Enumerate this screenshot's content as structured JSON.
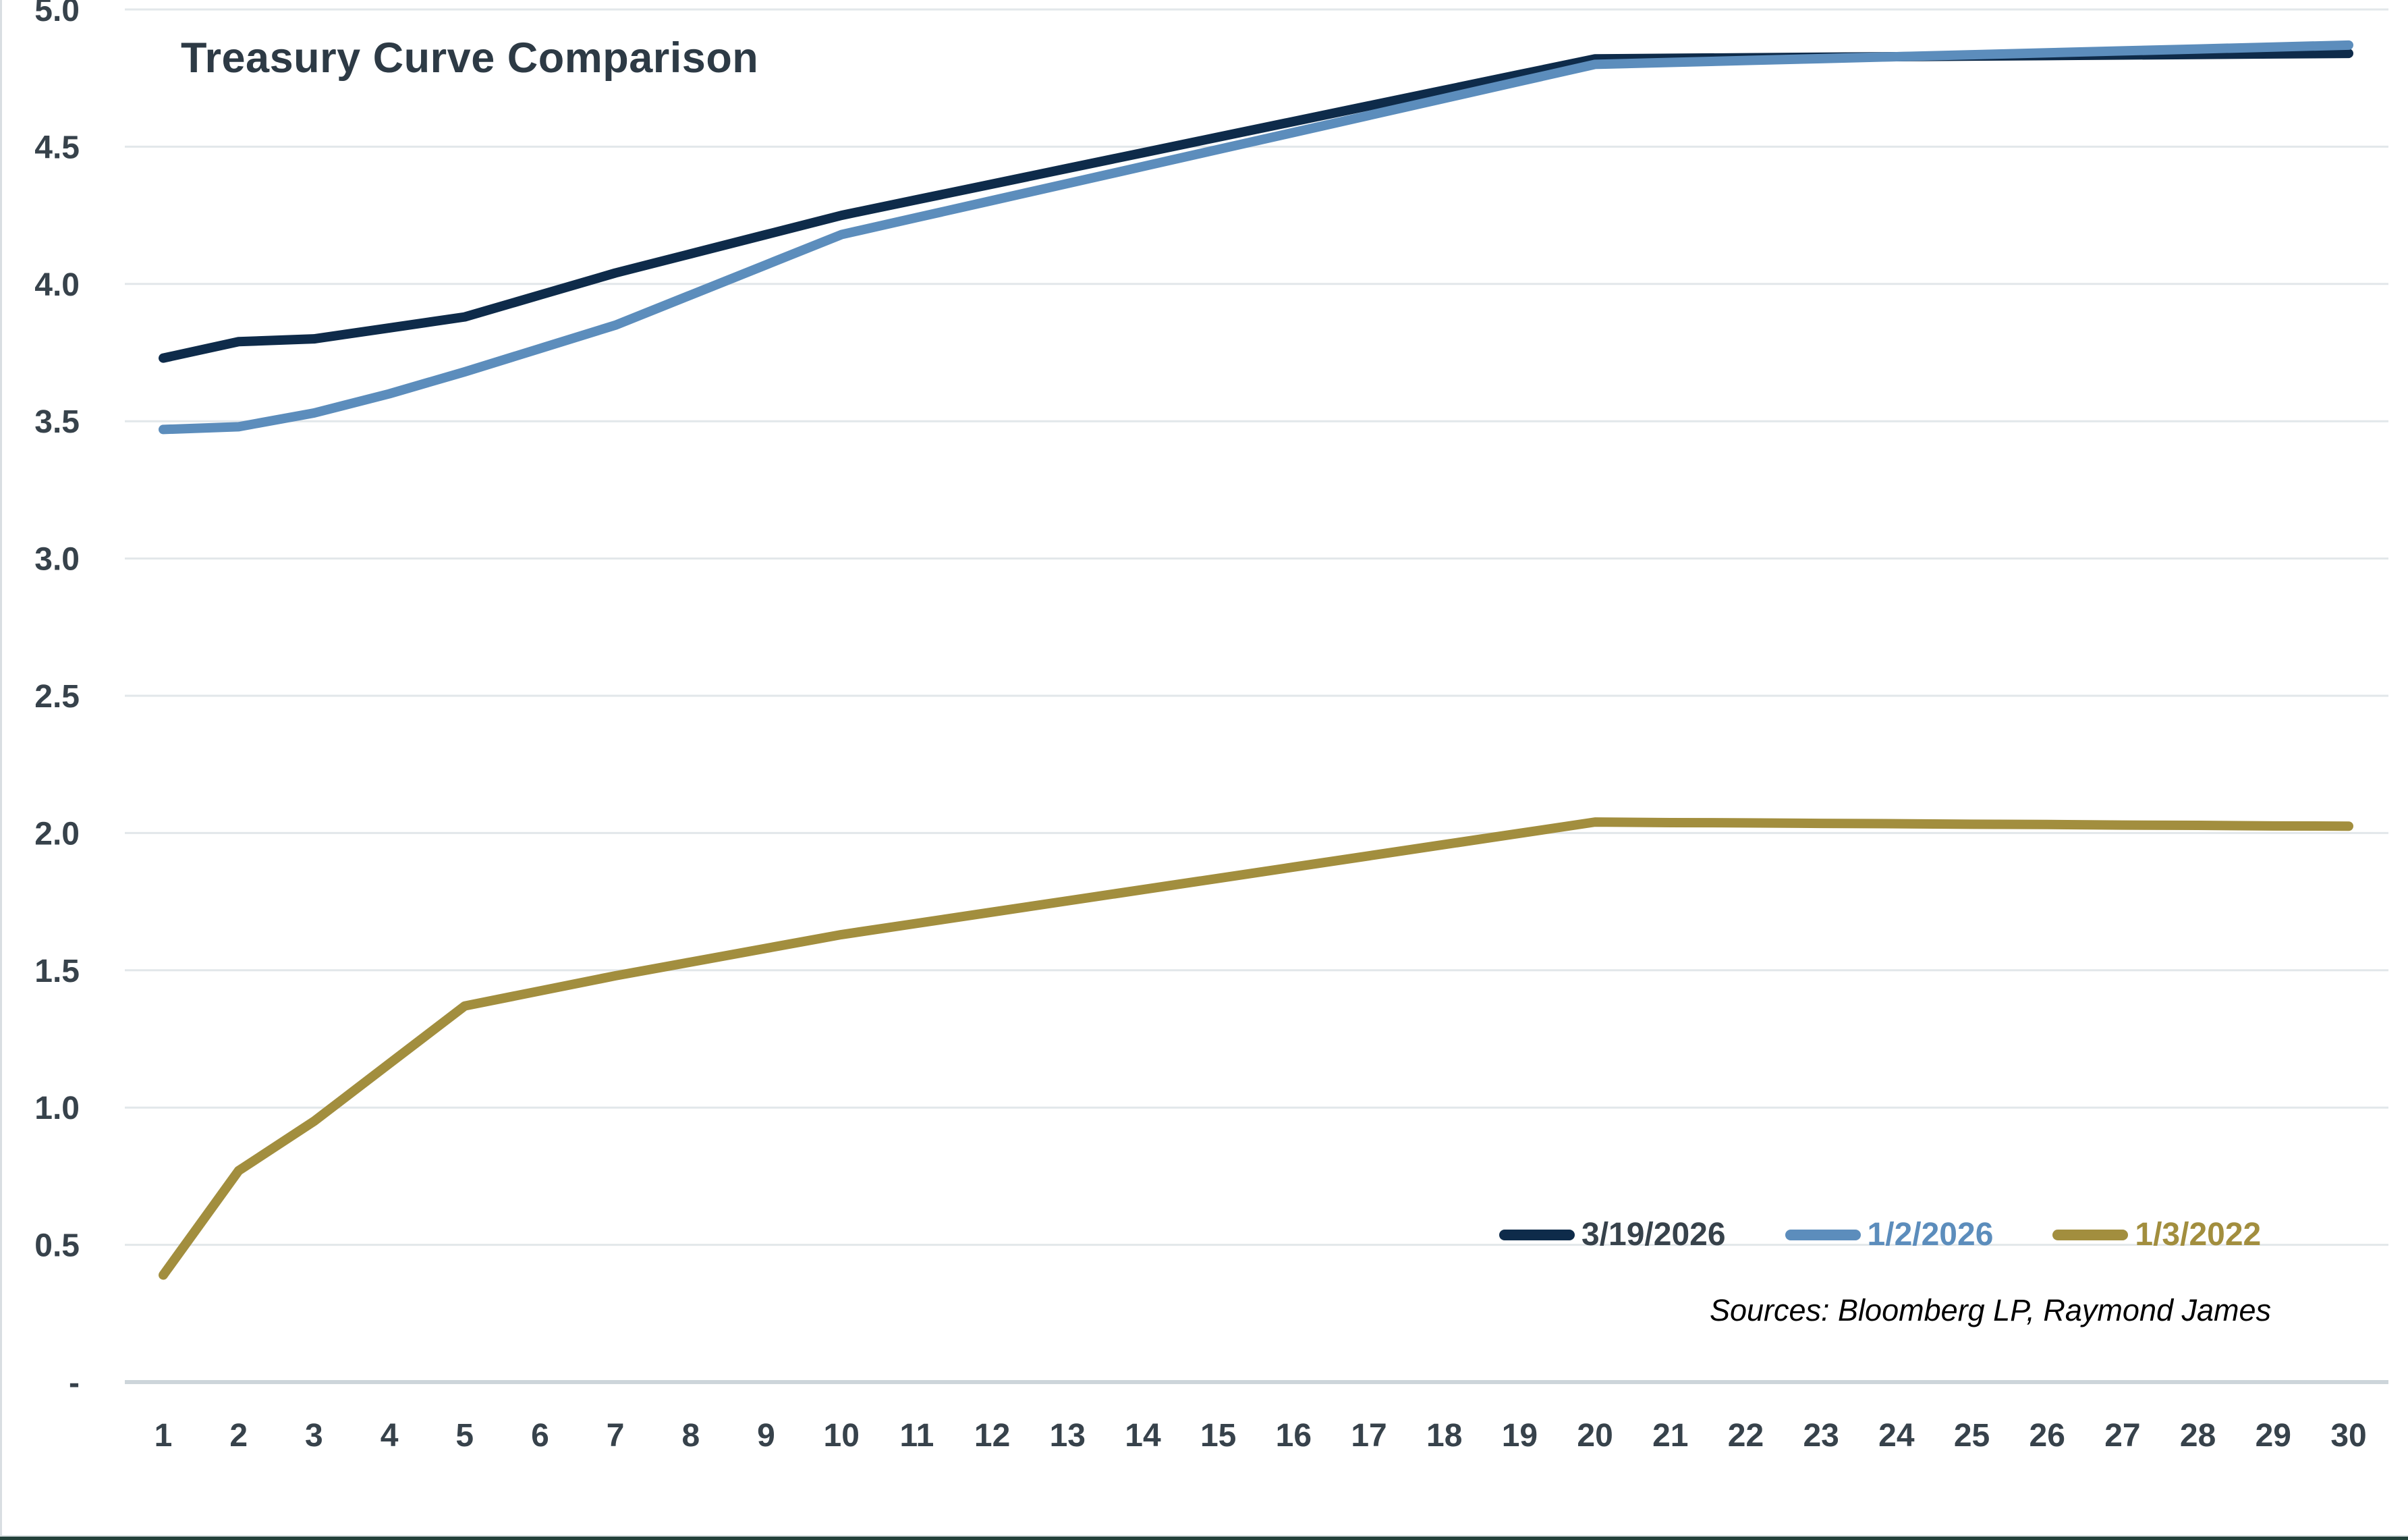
{
  "chart_data": {
    "type": "line",
    "title": "Treasury Curve Comparison",
    "xlabel": "",
    "ylabel": "",
    "x": [
      1,
      2,
      3,
      4,
      5,
      6,
      7,
      8,
      9,
      10,
      11,
      12,
      13,
      14,
      15,
      16,
      17,
      18,
      19,
      20,
      21,
      22,
      23,
      24,
      25,
      26,
      27,
      28,
      29,
      30
    ],
    "ylim": [
      0,
      5
    ],
    "ytick_step": 0.5,
    "ytick_labels": [
      "-",
      "0.5",
      "1.0",
      "1.5",
      "2.0",
      "2.5",
      "3.0",
      "3.5",
      "4.0",
      "4.5",
      "5.0"
    ],
    "grid": "horizontal",
    "legend_position": "inside-bottom-right",
    "series": [
      {
        "name": "3/19/2026",
        "color": "#0E2B4A",
        "label_color": "#37424B",
        "values": [
          3.73,
          3.79,
          3.8,
          3.84,
          3.88,
          3.96,
          4.04,
          4.11,
          4.18,
          4.25,
          4.307,
          4.364,
          4.421,
          4.478,
          4.535,
          4.592,
          4.649,
          4.706,
          4.763,
          4.82,
          4.822,
          4.824,
          4.826,
          4.828,
          4.83,
          4.832,
          4.834,
          4.836,
          4.838,
          4.84
        ]
      },
      {
        "name": "1/2/2026",
        "color": "#5C8DBC",
        "label_color": "#5C8DBC",
        "values": [
          3.47,
          3.48,
          3.53,
          3.6,
          3.68,
          3.765,
          3.85,
          3.96,
          4.07,
          4.18,
          4.242,
          4.304,
          4.366,
          4.428,
          4.49,
          4.552,
          4.614,
          4.676,
          4.738,
          4.8,
          4.807,
          4.814,
          4.821,
          4.828,
          4.835,
          4.842,
          4.849,
          4.856,
          4.863,
          4.87
        ]
      },
      {
        "name": "1/3/2022",
        "color": "#A28E3E",
        "label_color": "#A28E3E",
        "values": [
          0.39,
          0.77,
          0.95,
          1.16,
          1.37,
          1.425,
          1.48,
          1.53,
          1.58,
          1.63,
          1.671,
          1.712,
          1.753,
          1.794,
          1.835,
          1.876,
          1.917,
          1.958,
          1.999,
          2.04,
          2.038,
          2.037,
          2.035,
          2.034,
          2.032,
          2.031,
          2.029,
          2.028,
          2.026,
          2.025
        ]
      }
    ],
    "source_note": "Sources: Bloomberg LP, Raymond James"
  },
  "theme": {
    "background": "#FFFFFF",
    "title_color": "#2D3A45",
    "tick_text_color": "#37424B",
    "gridline_color": "#E2E7EA",
    "zero_axis_color": "#CDD5DA",
    "source_text_color": "#000000",
    "border_left_color": "#D9DEE2",
    "border_bottom_hairline_color": "#D5DBDE",
    "border_bottom_color": "#23413A"
  }
}
